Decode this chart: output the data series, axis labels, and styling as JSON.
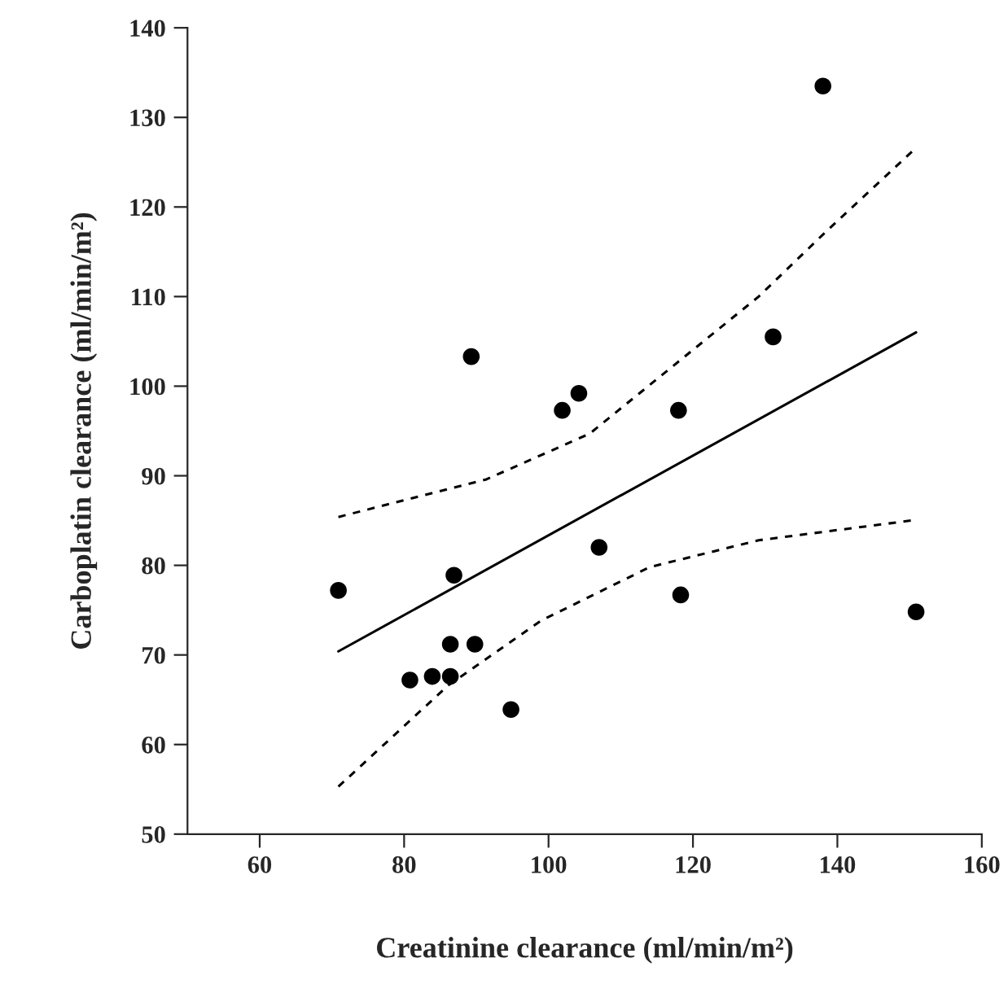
{
  "chart_data": {
    "type": "scatter",
    "xlabel": "Creatinine clearance (ml/min/m²)",
    "ylabel": "Carboplatin clearance (ml/min/m²)",
    "xlim": [
      50,
      160
    ],
    "ylim": [
      50,
      140
    ],
    "xticks": [
      60,
      80,
      100,
      120,
      140,
      160
    ],
    "yticks": [
      50,
      60,
      70,
      80,
      90,
      100,
      110,
      120,
      130,
      140
    ],
    "grid": false,
    "series": [
      {
        "marker": "circle",
        "color": "#000000",
        "x": [
          70.9,
          86.9,
          80.8,
          83.9,
          86.4,
          86.4,
          89.8,
          94.8,
          107.0,
          118.3,
          150.9,
          89.3,
          101.9,
          104.2,
          118.0,
          131.1,
          138.0
        ],
        "values": [
          77.2,
          78.9,
          67.2,
          67.6,
          67.6,
          71.2,
          71.2,
          63.9,
          82.0,
          76.7,
          74.8,
          103.3,
          97.3,
          99.2,
          97.3,
          105.5,
          133.5
        ]
      },
      {
        "type": "line",
        "color": "#000000",
        "line_style": "solid",
        "x": [
          70.9,
          150.9
        ],
        "values": [
          70.4,
          106.0
        ]
      },
      {
        "type": "line",
        "color": "#000000",
        "line_style": "dashed",
        "x": [
          70.9,
          91.4,
          105.7,
          129.1,
          138.1,
          150.5
        ],
        "values": [
          85.4,
          89.6,
          94.7,
          110.0,
          117.0,
          126.3
        ]
      },
      {
        "type": "line",
        "color": "#000000",
        "line_style": "dashed",
        "x": [
          70.9,
          86.1,
          98.9,
          114.0,
          129.1,
          150.2
        ],
        "values": [
          55.3,
          66.6,
          73.8,
          79.8,
          82.8,
          85.0
        ]
      }
    ]
  }
}
